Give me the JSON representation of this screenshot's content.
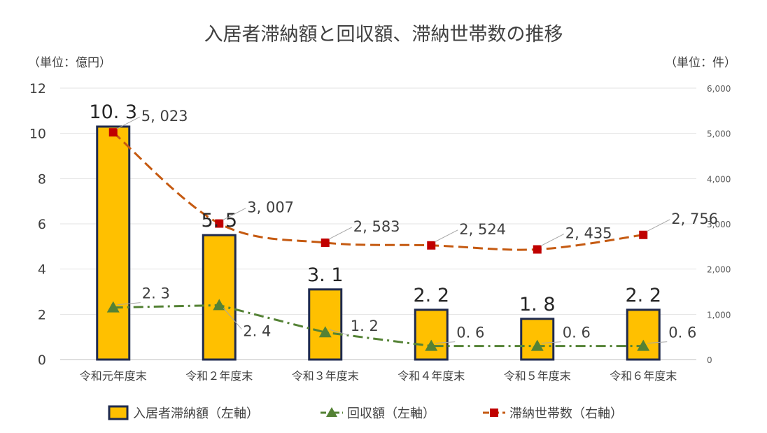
{
  "chart_data": {
    "type": "bar",
    "title": "入居者滞納額と回収額、滞納世帯数の推移",
    "left_unit": "（単位：億円）",
    "right_unit": "（単位：件）",
    "categories": [
      "令和元年度末",
      "令和２年度末",
      "令和３年度末",
      "令和４年度末",
      "令和５年度末",
      "令和６年度末"
    ],
    "ylim_left": [
      0,
      12
    ],
    "ylim_right": [
      0,
      6000
    ],
    "yticks_left": [
      "0",
      "2",
      "4",
      "6",
      "8",
      "10",
      "12"
    ],
    "yticks_right": [
      "0",
      "1,000",
      "2,000",
      "3,000",
      "4,000",
      "5,000",
      "6,000"
    ],
    "grid": true,
    "legend_position": "bottom",
    "series": [
      {
        "name": "入居者滞納額（左軸）",
        "type": "bar",
        "axis": "left",
        "values": [
          10.3,
          5.5,
          3.1,
          2.2,
          1.8,
          2.2
        ],
        "labels": [
          "10. 3",
          "5. 5",
          "3. 1",
          "2. 2",
          "1. 8",
          "2. 2"
        ],
        "color": "#FFC000",
        "edge_color": "#1F2A4E"
      },
      {
        "name": "回収額（左軸）",
        "type": "line",
        "axis": "left",
        "values": [
          2.3,
          2.4,
          1.2,
          0.6,
          0.6,
          0.6
        ],
        "labels": [
          "2. 3",
          "2. 4",
          "1. 2",
          "0. 6",
          "0. 6",
          "0. 6"
        ],
        "color": "#548235",
        "marker": "triangle",
        "line_style": "dash-dot"
      },
      {
        "name": "滞納世帯数（右軸）",
        "type": "line",
        "axis": "right",
        "values": [
          5023,
          3007,
          2583,
          2524,
          2435,
          2756
        ],
        "labels": [
          "5, 023",
          "3, 007",
          "2, 583",
          "2, 524",
          "2, 435",
          "2, 756"
        ],
        "color": "#C55A11",
        "marker_color": "#C00000",
        "marker": "square",
        "line_style": "dashed"
      }
    ]
  }
}
